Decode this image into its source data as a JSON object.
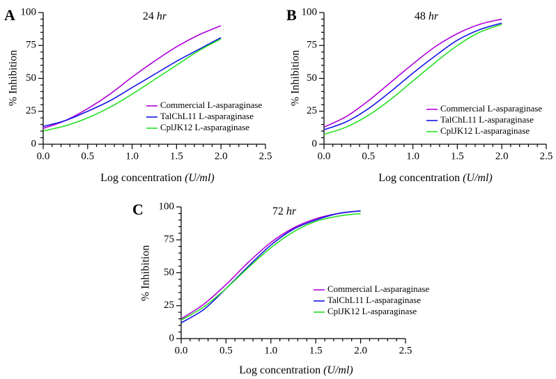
{
  "colors": {
    "commercial": "#b000d8",
    "talchl11": "#1414e6",
    "cpljk12": "#22e022"
  },
  "chart_data": [
    {
      "panel_label": "A",
      "title_num": "24 ",
      "title_unit": "hr",
      "type": "line",
      "xlabel_main": "Log concentration ",
      "xlabel_unit": "(U/ml)",
      "ylabel": "% Inhibition",
      "xlim": [
        0.0,
        2.5
      ],
      "ylim": [
        0,
        100
      ],
      "xticks": [
        "0.0",
        "0.5",
        "1.0",
        "1.5",
        "2.0",
        "2.5"
      ],
      "yticks": [
        "0",
        "25",
        "50",
        "75",
        "100"
      ],
      "grid": false,
      "legend_position": "lower-right",
      "x": [
        0.0,
        0.25,
        0.5,
        0.75,
        1.0,
        1.25,
        1.5,
        1.75,
        2.0
      ],
      "series": [
        {
          "name": "Commercial L-asparaginase",
          "color_key": "commercial",
          "values": [
            12,
            18,
            27,
            38,
            51,
            63,
            74,
            83,
            90
          ]
        },
        {
          "name": "TalChL11 L-asparaginase",
          "color_key": "talchl11",
          "values": [
            13.5,
            18,
            25,
            33,
            43,
            53,
            63,
            72,
            81
          ]
        },
        {
          "name": "CplJK12 L-asparaginase",
          "color_key": "cpljk12",
          "values": [
            10,
            14,
            20,
            28,
            38,
            49,
            60,
            71,
            80
          ]
        }
      ]
    },
    {
      "panel_label": "B",
      "title_num": "48 ",
      "title_unit": "hr",
      "type": "line",
      "xlabel_main": "Log concentration ",
      "xlabel_unit": "(U/ml)",
      "ylabel": "% Inhibition",
      "xlim": [
        0.0,
        2.5
      ],
      "ylim": [
        0,
        100
      ],
      "xticks": [
        "0.0",
        "0.5",
        "1.0",
        "1.5",
        "2.0",
        "2.5"
      ],
      "yticks": [
        "0",
        "25",
        "50",
        "75",
        "100"
      ],
      "grid": false,
      "legend_position": "lower-right",
      "x": [
        0.0,
        0.25,
        0.5,
        0.75,
        1.0,
        1.25,
        1.5,
        1.75,
        2.0
      ],
      "series": [
        {
          "name": "Commercial L-asparaginase",
          "color_key": "commercial",
          "values": [
            13,
            21,
            33,
            47,
            61,
            74,
            84,
            91,
            95
          ]
        },
        {
          "name": "TalChL11 L-asparaginase",
          "color_key": "talchl11",
          "values": [
            11,
            17,
            27,
            40,
            54,
            67,
            79,
            87,
            92
          ]
        },
        {
          "name": "CplJK12 L-asparaginase",
          "color_key": "cpljk12",
          "values": [
            7.5,
            13,
            22,
            34,
            48,
            62,
            75,
            85,
            91
          ]
        }
      ]
    },
    {
      "panel_label": "C",
      "title_num": "72 ",
      "title_unit": "hr",
      "type": "line",
      "xlabel_main": "Log concentration ",
      "xlabel_unit": "(U/ml)",
      "ylabel": "% Inhibition",
      "xlim": [
        0.0,
        2.5
      ],
      "ylim": [
        0,
        100
      ],
      "xticks": [
        "0.0",
        "0.5",
        "1.0",
        "1.5",
        "2.0",
        "2.5"
      ],
      "yticks": [
        "0",
        "25",
        "50",
        "75",
        "100"
      ],
      "grid": false,
      "legend_position": "lower-right",
      "x": [
        0.0,
        0.25,
        0.5,
        0.75,
        1.0,
        1.25,
        1.5,
        1.75,
        2.0
      ],
      "series": [
        {
          "name": "Commercial L-asparaginase",
          "color_key": "commercial",
          "values": [
            15,
            26,
            41,
            58,
            73,
            84,
            91,
            95,
            97
          ]
        },
        {
          "name": "TalChL11 L-asparaginase",
          "color_key": "talchl11",
          "values": [
            12,
            22,
            38,
            55,
            71,
            83,
            90,
            95,
            97
          ]
        },
        {
          "name": "CplJK12 L-asparaginase",
          "color_key": "cpljk12",
          "values": [
            14,
            24,
            38,
            54,
            69,
            81,
            89,
            93,
            95
          ]
        }
      ]
    }
  ]
}
